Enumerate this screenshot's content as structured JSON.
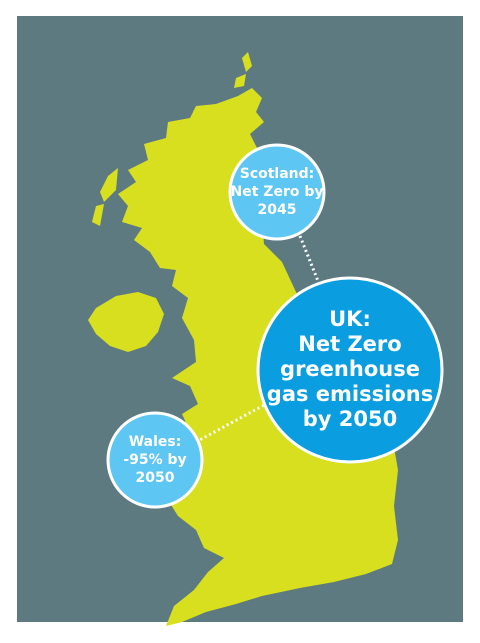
{
  "callouts": [
    {
      "region": "Scotland",
      "lines": [
        "Scotland:",
        "Net Zero by",
        "2045"
      ]
    },
    {
      "region": "UK",
      "lines": [
        "UK:",
        "Net Zero",
        "greenhouse",
        "gas emissions",
        "by 2050"
      ]
    },
    {
      "region": "Wales",
      "lines": [
        "Wales:",
        "-95% by",
        "2050"
      ]
    }
  ]
}
